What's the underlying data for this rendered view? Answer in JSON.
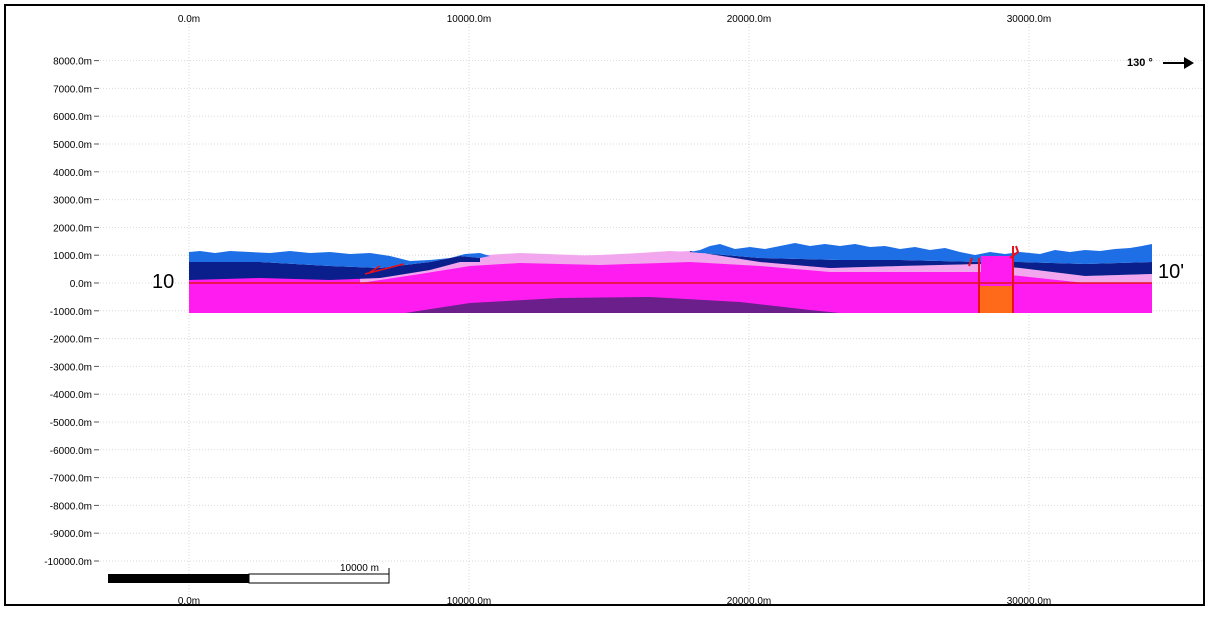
{
  "section": {
    "start_label": "10",
    "end_label": "10'",
    "azimuth": "130 °",
    "scalebar": {
      "label": "10000 m"
    }
  },
  "axes": {
    "x_top_ticks": [
      "0.0m",
      "10000.0m",
      "20000.0m",
      "30000.0m"
    ],
    "x_bottom_ticks": [
      "0.0m",
      "10000.0m",
      "20000.0m",
      "30000.0m"
    ],
    "x_values": [
      0,
      10000,
      20000,
      30000
    ],
    "y_ticks": [
      "8000.0m",
      "7000.0m",
      "6000.0m",
      "5000.0m",
      "4000.0m",
      "3000.0m",
      "2000.0m",
      "1000.0m",
      "0.0m",
      "-1000.0m",
      "-2000.0m",
      "-3000.0m",
      "-4000.0m",
      "-5000.0m",
      "-6000.0m",
      "-7000.0m",
      "-8000.0m",
      "-9000.0m",
      "-10000.0m"
    ],
    "y_values": [
      8000,
      7000,
      6000,
      5000,
      4000,
      3000,
      2000,
      1000,
      0,
      -1000,
      -2000,
      -3000,
      -4000,
      -5000,
      -6000,
      -7000,
      -8000,
      -9000,
      -10000
    ]
  },
  "colors": {
    "surface_blue": "#1e6fe6",
    "navy": "#0b1f8c",
    "pale_pink": "#f2a6ee",
    "magenta": "#ff1cf0",
    "deep_purple": "#6a1f8a",
    "orange": "#ff6a1a",
    "fault_red": "#e8101a",
    "grid": "#d9d9d9"
  }
}
